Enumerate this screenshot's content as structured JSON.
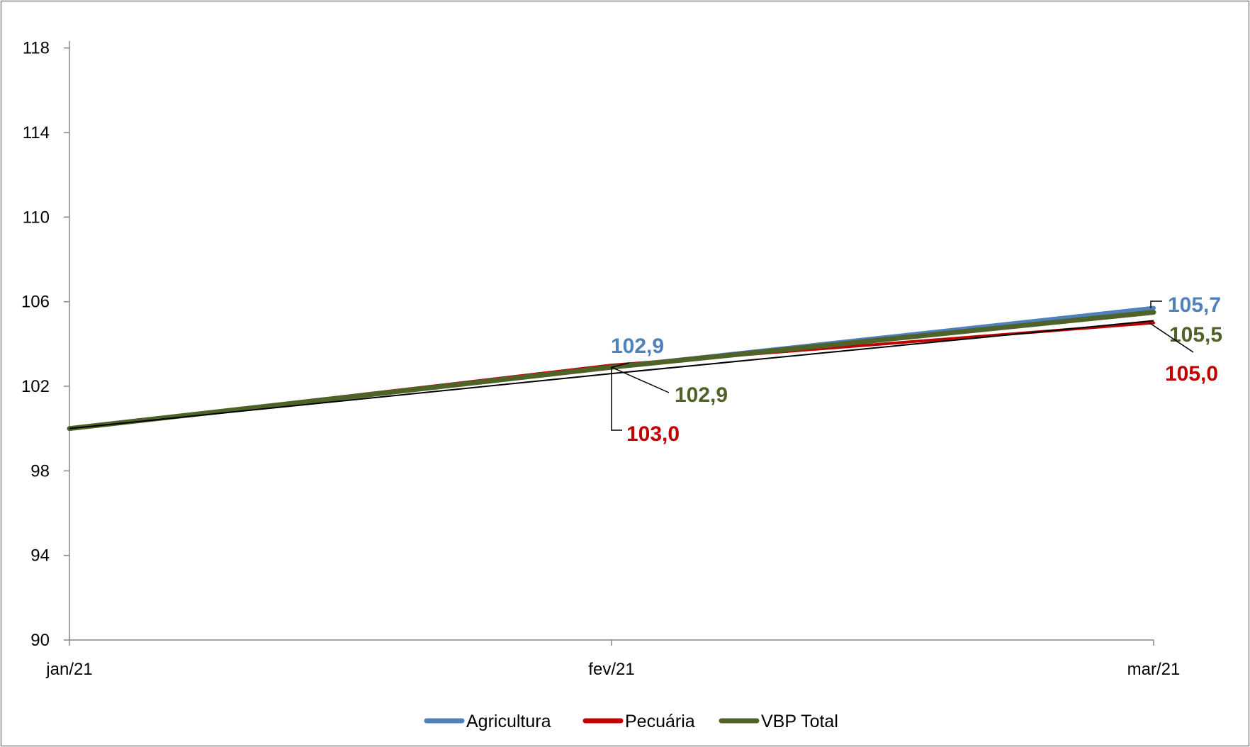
{
  "chart_data": {
    "type": "line",
    "categories": [
      "jan/21",
      "fev/21",
      "mar/21"
    ],
    "ylim": [
      90,
      120
    ],
    "yticks": [
      90,
      94,
      98,
      102,
      106,
      110,
      114,
      118
    ],
    "ytick_labels": [
      "90",
      "94",
      "98",
      "102",
      "106",
      "110",
      "114",
      "118"
    ],
    "grid": false,
    "legend_position": "bottom",
    "series": [
      {
        "name": "Agricultura",
        "color": "#4F81BD",
        "values": [
          100.0,
          102.9,
          105.7
        ],
        "data_labels": [
          "",
          "102,9",
          "105,7"
        ]
      },
      {
        "name": "Pecuária",
        "color": "#C00000",
        "values": [
          100.0,
          103.0,
          105.0
        ],
        "data_labels": [
          "",
          "103,0",
          "105,0"
        ]
      },
      {
        "name": "VBP Total",
        "color": "#4F6228",
        "values": [
          100.0,
          102.9,
          105.5
        ],
        "data_labels": [
          "",
          "102,9",
          "105,5"
        ]
      }
    ],
    "trendline": {
      "color": "#000000",
      "values": [
        100.0,
        102.6,
        105.1
      ]
    }
  }
}
